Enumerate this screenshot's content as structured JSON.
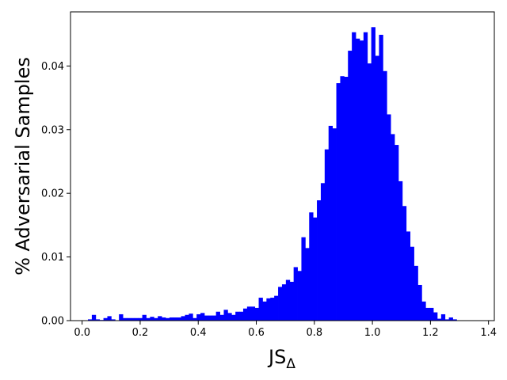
{
  "chart_data": {
    "type": "bar",
    "subtype": "histogram",
    "xlabel": "JS",
    "xlabel_subscript": "Δ",
    "ylabel": "% Adversarial Samples",
    "xlim": [
      -0.04,
      1.42
    ],
    "ylim": [
      0,
      0.0485
    ],
    "x_ticks": [
      0.0,
      0.2,
      0.4,
      0.6,
      0.8,
      1.0,
      1.2,
      1.4
    ],
    "x_tick_labels": [
      "0.0",
      "0.2",
      "0.4",
      "0.6",
      "0.8",
      "1.0",
      "1.2",
      "1.4"
    ],
    "y_ticks": [
      0.0,
      0.01,
      0.02,
      0.03,
      0.04
    ],
    "y_tick_labels": [
      "0.00",
      "0.01",
      "0.02",
      "0.03",
      "0.04"
    ],
    "bar_color": "#0000ff",
    "bin_start": 0.02,
    "bin_width": 0.01337,
    "values": [
      0.0002,
      0.0009,
      0.0002,
      0.0001,
      0.0004,
      0.0007,
      0.0002,
      0.0,
      0.001,
      0.0004,
      0.0004,
      0.0004,
      0.0004,
      0.0004,
      0.0009,
      0.0004,
      0.0006,
      0.0004,
      0.0007,
      0.0005,
      0.0004,
      0.0005,
      0.0005,
      0.0005,
      0.0007,
      0.0009,
      0.0011,
      0.0004,
      0.001,
      0.0012,
      0.0008,
      0.0008,
      0.0008,
      0.0014,
      0.0009,
      0.0017,
      0.0012,
      0.0009,
      0.0014,
      0.0014,
      0.0019,
      0.0022,
      0.0022,
      0.002,
      0.0036,
      0.003,
      0.0035,
      0.0036,
      0.0039,
      0.0053,
      0.0057,
      0.0064,
      0.0061,
      0.0084,
      0.0078,
      0.0131,
      0.0114,
      0.017,
      0.0162,
      0.0189,
      0.0216,
      0.0269,
      0.0306,
      0.0302,
      0.0373,
      0.0384,
      0.0383,
      0.0424,
      0.0453,
      0.0443,
      0.044,
      0.0453,
      0.0404,
      0.0461,
      0.0416,
      0.0449,
      0.0392,
      0.0324,
      0.0293,
      0.0276,
      0.0219,
      0.018,
      0.014,
      0.0116,
      0.0086,
      0.0056,
      0.003,
      0.002,
      0.002,
      0.0013,
      0.0003,
      0.001,
      0.0002,
      0.0005,
      0.0002
    ]
  }
}
